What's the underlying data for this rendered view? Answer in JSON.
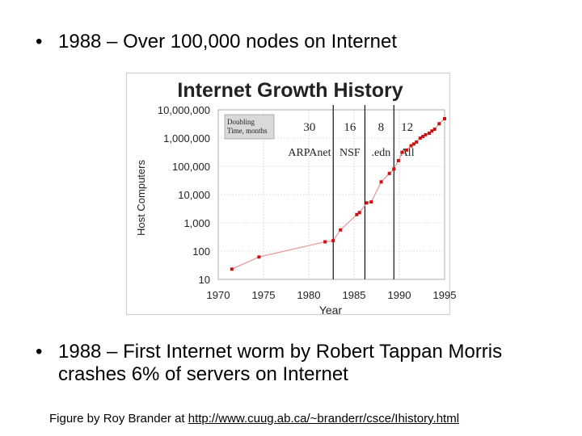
{
  "slide": {
    "bullets": [
      {
        "marker": "•",
        "text": "1988 – Over 100,000 nodes on Internet"
      },
      {
        "marker": "•",
        "text": "1988 – First Internet worm by Robert Tappan Morris crashes 6% of servers on Internet"
      }
    ],
    "credit_prefix": "Figure by Roy Brander at ",
    "credit_link": "http://www.cuug.ab.ca/~branderr/csce/Ihistory.html"
  },
  "chart_data": {
    "type": "line",
    "title": "Internet Growth History",
    "xlabel": "Year",
    "ylabel": "Host Computers",
    "y_scale": "log",
    "xlim": [
      1970,
      1995
    ],
    "ylim": [
      10,
      10000000
    ],
    "x_ticks": [
      "1970",
      "1975",
      "1980",
      "1985",
      "1990",
      "1995"
    ],
    "y_ticks": [
      "10",
      "100",
      "1,000",
      "10,000",
      "100,000",
      "1,000,000",
      "10,000,000"
    ],
    "grid": true,
    "line_color": "#e89a9a",
    "marker_color": "#cc1111",
    "divider_color": "#111111",
    "box_color": "#d9d9d9",
    "series": [
      {
        "x": [
          1971.5,
          1974.5,
          1981.8,
          1982.7,
          1983.5,
          1985.3,
          1985.6,
          1986.4,
          1986.9,
          1988.0,
          1988.9,
          1989.4,
          1989.9,
          1990.3,
          1990.8,
          1991.3,
          1991.6,
          1991.9,
          1992.3,
          1992.6,
          1992.9,
          1993.3,
          1993.6,
          1993.9,
          1994.4,
          1995.0
        ],
        "y": [
          23,
          62,
          213,
          235,
          562,
          1961,
          2308,
          5089,
          5500,
          28174,
          56000,
          80000,
          159000,
          313000,
          376000,
          535000,
          617000,
          727000,
          992000,
          1136000,
          1313000,
          1486000,
          1776000,
          2056000,
          3212000,
          4852000
        ]
      }
    ],
    "eras": [
      {
        "label": "ARPAnet",
        "doubling": "30",
        "divider_x": 1982.7
      },
      {
        "label": "NSF",
        "doubling": "16",
        "divider_x": 1986.2
      },
      {
        "label": ".edn",
        "doubling": "8",
        "divider_x": 1989.4
      },
      {
        "label": "All",
        "doubling": "12",
        "divider_x": null
      }
    ],
    "legend_box": {
      "line1": "Doubling",
      "line2": "Time, months"
    }
  }
}
